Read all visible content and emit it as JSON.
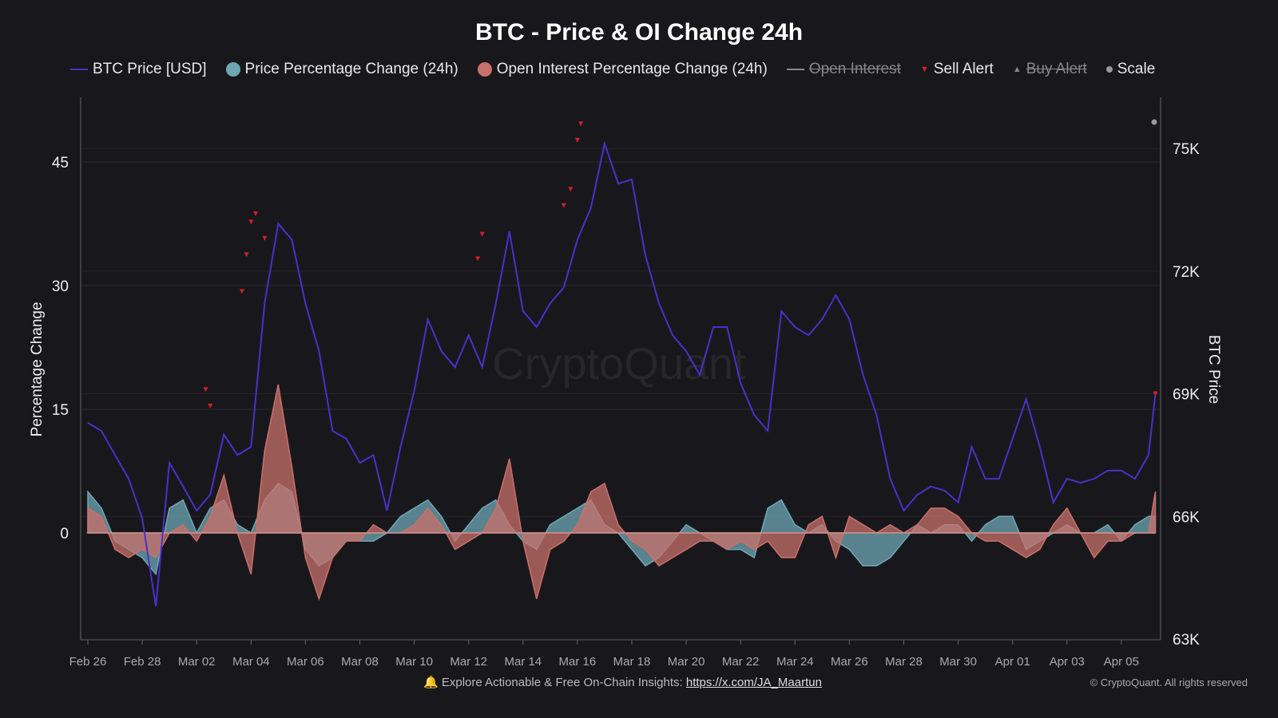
{
  "chart_data": {
    "type": "line",
    "title": "BTC - Price & OI Change 24h",
    "ylabel": "Percentage Change",
    "y2label": "BTC Price",
    "ylim": [
      -13,
      52
    ],
    "y2lim": [
      63000,
      76200
    ],
    "yticks": [
      0,
      15,
      30,
      45
    ],
    "y2ticks": [
      "63K",
      "66K",
      "69K",
      "72K",
      "75K"
    ],
    "y2tick_values": [
      63000,
      66000,
      69000,
      72000,
      75000
    ],
    "xticks": [
      "Feb 26",
      "Feb 28",
      "Mar 02",
      "Mar 04",
      "Mar 06",
      "Mar 08",
      "Mar 10",
      "Mar 12",
      "Mar 14",
      "Mar 16",
      "Mar 18",
      "Mar 20",
      "Mar 22",
      "Mar 24",
      "Mar 26",
      "Mar 28",
      "Mar 30",
      "Apr 01",
      "Apr 03",
      "Apr 05"
    ],
    "grid": true,
    "legend_placement": "top",
    "watermark": "CryptoQuant",
    "legend": [
      {
        "label": "BTC Price [USD]",
        "kind": "line",
        "color": "#4b2fc9",
        "hidden": false
      },
      {
        "label": "Price Percentage Change (24h)",
        "kind": "dot",
        "color": "#6ea7b4",
        "hidden": false
      },
      {
        "label": "Open Interest Percentage Change (24h)",
        "kind": "dot",
        "color": "#c8706b",
        "hidden": false
      },
      {
        "label": "Open Interest",
        "kind": "line",
        "color": "#888888",
        "hidden": true
      },
      {
        "label": "Sell Alert",
        "kind": "tri-down",
        "color": "#d0202a",
        "hidden": false
      },
      {
        "label": "Buy Alert",
        "kind": "tri-up",
        "color": "#888888",
        "hidden": true
      },
      {
        "label": "Scale",
        "kind": "dot-small",
        "color": "#999999",
        "hidden": false
      }
    ],
    "x": [
      "Feb 26 00:00",
      "Feb 26 12:00",
      "Feb 27 00:00",
      "Feb 27 12:00",
      "Feb 28 00:00",
      "Feb 28 12:00",
      "Mar 01 00:00",
      "Mar 01 12:00",
      "Mar 02 00:00",
      "Mar 02 12:00",
      "Mar 03 00:00",
      "Mar 03 12:00",
      "Mar 04 00:00",
      "Mar 04 12:00",
      "Mar 05 00:00",
      "Mar 05 12:00",
      "Mar 06 00:00",
      "Mar 06 12:00",
      "Mar 07 00:00",
      "Mar 07 12:00",
      "Mar 08 00:00",
      "Mar 08 12:00",
      "Mar 09 00:00",
      "Mar 09 12:00",
      "Mar 10 00:00",
      "Mar 10 12:00",
      "Mar 11 00:00",
      "Mar 11 12:00",
      "Mar 12 00:00",
      "Mar 12 12:00",
      "Mar 13 00:00",
      "Mar 13 12:00",
      "Mar 14 00:00",
      "Mar 14 12:00",
      "Mar 15 00:00",
      "Mar 15 12:00",
      "Mar 16 00:00",
      "Mar 16 12:00",
      "Mar 17 00:00",
      "Mar 17 12:00",
      "Mar 18 00:00",
      "Mar 18 12:00",
      "Mar 19 00:00",
      "Mar 19 12:00",
      "Mar 20 00:00",
      "Mar 20 12:00",
      "Mar 21 00:00",
      "Mar 21 12:00",
      "Mar 22 00:00",
      "Mar 22 12:00",
      "Mar 23 00:00",
      "Mar 23 12:00",
      "Mar 24 00:00",
      "Mar 24 12:00",
      "Mar 25 00:00",
      "Mar 25 12:00",
      "Mar 26 00:00",
      "Mar 26 12:00",
      "Mar 27 00:00",
      "Mar 27 12:00",
      "Mar 28 00:00",
      "Mar 28 12:00",
      "Mar 29 00:00",
      "Mar 29 12:00",
      "Mar 30 00:00",
      "Mar 30 12:00",
      "Mar 31 00:00",
      "Mar 31 12:00",
      "Apr 01 00:00",
      "Apr 01 12:00",
      "Apr 02 00:00",
      "Apr 02 12:00",
      "Apr 03 00:00",
      "Apr 03 12:00",
      "Apr 04 00:00",
      "Apr 04 12:00",
      "Apr 05 00:00",
      "Apr 05 12:00",
      "Apr 06 00:00",
      "Apr 06 06:00"
    ],
    "series": [
      {
        "name": "BTC Price [USD]",
        "axis": "right",
        "values": [
          68290,
          68090,
          67500,
          66920,
          65950,
          63800,
          67310,
          66730,
          66140,
          66530,
          68000,
          67500,
          67700,
          71210,
          73160,
          72770,
          71210,
          70040,
          68090,
          67900,
          67310,
          67500,
          66140,
          67700,
          69070,
          70820,
          70040,
          69650,
          70430,
          69650,
          71210,
          72970,
          71020,
          70630,
          71210,
          71600,
          72770,
          73550,
          75120,
          74140,
          74240,
          72380,
          71210,
          70430,
          70040,
          69460,
          70630,
          70630,
          69260,
          68480,
          68090,
          71020,
          70630,
          70430,
          70820,
          71410,
          70820,
          69460,
          68480,
          66920,
          66140,
          66530,
          66730,
          66630,
          66340,
          67700,
          66920,
          66920,
          67900,
          68870,
          67700,
          66340,
          66920,
          66820,
          66920,
          67120,
          67120,
          66920,
          67500,
          69000
        ]
      },
      {
        "name": "Price Percentage Change (24h)",
        "axis": "left",
        "values": [
          5,
          3,
          -1,
          -2,
          -3,
          -5,
          3,
          4,
          0,
          3,
          4,
          1,
          0,
          4,
          6,
          5,
          -2,
          -4,
          -3,
          -1,
          -1,
          -1,
          0,
          2,
          3,
          4,
          2,
          -1,
          1,
          3,
          4,
          1,
          -1,
          -2,
          1,
          2,
          3,
          4,
          1,
          0,
          -2,
          -4,
          -3,
          -1,
          1,
          0,
          -1,
          -2,
          -2,
          -3,
          3,
          4,
          1,
          0,
          1,
          -1,
          -2,
          -4,
          -4,
          -3,
          -1,
          1,
          0,
          1,
          1,
          -1,
          1,
          2,
          2,
          -2,
          -1,
          0,
          1,
          0,
          0,
          1,
          -1,
          1,
          2,
          2
        ]
      },
      {
        "name": "Open Interest Percentage Change (24h)",
        "axis": "left",
        "values": [
          3,
          2,
          -2,
          -3,
          -2,
          -3,
          0,
          1,
          -1,
          2,
          7,
          0,
          -5,
          10,
          18,
          8,
          -3,
          -8,
          -3,
          -1,
          -1,
          1,
          0,
          0,
          1,
          3,
          1,
          -2,
          -1,
          0,
          3,
          9,
          -1,
          -8,
          -2,
          -1,
          1,
          5,
          6,
          1,
          -1,
          -2,
          -4,
          -3,
          -2,
          -1,
          -1,
          -2,
          -1,
          -2,
          -1,
          -3,
          -3,
          1,
          2,
          -3,
          2,
          1,
          0,
          1,
          0,
          1,
          3,
          3,
          2,
          0,
          -1,
          -1,
          -2,
          -3,
          -2,
          1,
          3,
          0,
          -3,
          -1,
          -1,
          0,
          0,
          5
        ]
      }
    ],
    "sell_alerts": [
      {
        "x": "Mar 02 08:00",
        "price": 69100
      },
      {
        "x": "Mar 02 12:00",
        "price": 68700
      },
      {
        "x": "Mar 03 16:00",
        "price": 71500
      },
      {
        "x": "Mar 03 20:00",
        "price": 72400
      },
      {
        "x": "Mar 04 00:00",
        "price": 73200
      },
      {
        "x": "Mar 04 04:00",
        "price": 73400
      },
      {
        "x": "Mar 04 12:00",
        "price": 72800
      },
      {
        "x": "Mar 12 08:00",
        "price": 72300
      },
      {
        "x": "Mar 12 12:00",
        "price": 72900
      },
      {
        "x": "Mar 15 12:00",
        "price": 73600
      },
      {
        "x": "Mar 15 18:00",
        "price": 74000
      },
      {
        "x": "Mar 16 00:00",
        "price": 75200
      },
      {
        "x": "Mar 16 03:00",
        "price": 75600
      },
      {
        "x": "Apr 06 06:00",
        "price": 69000
      }
    ]
  },
  "footer": {
    "text": "Explore Actionable & Free On-Chain Insights: ",
    "link": "https://x.com/JA_Maartun",
    "copyright": "© CryptoQuant. All rights reserved"
  }
}
